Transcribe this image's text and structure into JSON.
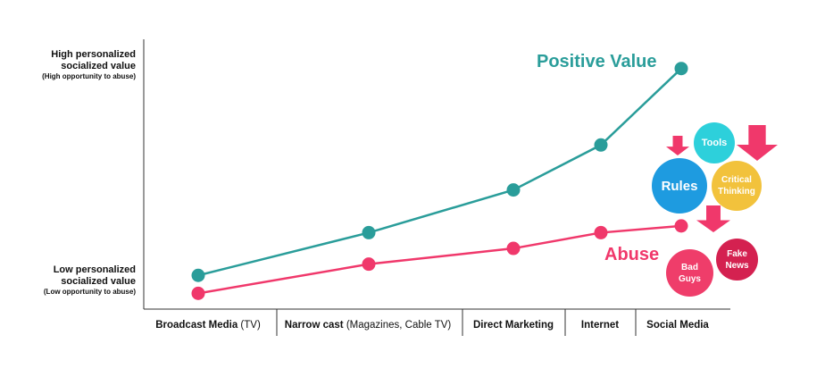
{
  "y_labels": {
    "high_line1": "High personalized",
    "high_line2": "socialized value",
    "high_sub": "(High opportunity to abuse)",
    "low_line1": "Low personalized",
    "low_line2": "socialized value",
    "low_sub": "(Low opportunity to abuse)"
  },
  "categories": [
    {
      "bold": "Broadcast Media",
      "rest": " (TV)"
    },
    {
      "bold": "Narrow cast",
      "rest": " (Magazines, Cable TV)"
    },
    {
      "bold": "Direct Marketing",
      "rest": ""
    },
    {
      "bold": "Internet",
      "rest": ""
    },
    {
      "bold": "Social Media",
      "rest": ""
    }
  ],
  "bubbles": {
    "tools": "Tools",
    "rules": "Rules",
    "critical_line1": "Critical",
    "critical_line2": "Thinking",
    "bad_line1": "Bad",
    "bad_line2": "Guys",
    "fake_line1": "Fake",
    "fake_line2": "News"
  },
  "colors": {
    "positive": "#2a9d9a",
    "abuse": "#f0386b",
    "tools": "#2dd0db",
    "rules": "#1e9be0",
    "critical": "#f2c23c",
    "bad_guys": "#ef3d6a",
    "fake_news": "#d42150",
    "arrow": "#f0386b",
    "axis": "#333333"
  },
  "chart_data": {
    "type": "line",
    "categories": [
      "Broadcast Media (TV)",
      "Narrow cast (Magazines, Cable TV)",
      "Direct Marketing",
      "Internet",
      "Social Media"
    ],
    "series": [
      {
        "name": "Positive Value",
        "values": [
          0.05,
          0.24,
          0.43,
          0.63,
          0.97
        ]
      },
      {
        "name": "Abuse",
        "values": [
          -0.03,
          0.1,
          0.17,
          0.24,
          0.27
        ]
      }
    ],
    "ylim": [
      -0.1,
      1.1
    ],
    "grid": false,
    "legend": "inline labels"
  }
}
